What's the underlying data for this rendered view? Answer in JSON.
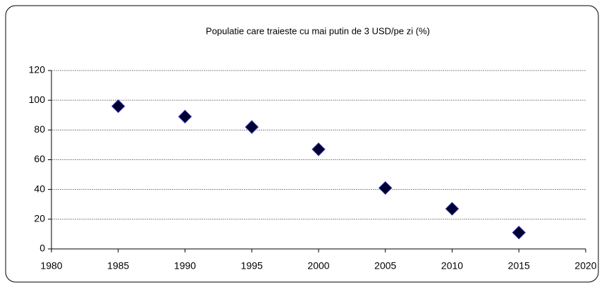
{
  "chart_data": {
    "type": "scatter",
    "title": "Populatie care traieste cu mai putin de 3 USD/pe zi (%)",
    "x": [
      1985,
      1990,
      1995,
      2000,
      2005,
      2010,
      2015
    ],
    "values": [
      96,
      89,
      82,
      67,
      41,
      27,
      11
    ],
    "color": "#000033",
    "xlim": [
      1980,
      2020
    ],
    "xticks": [
      1980,
      1985,
      1990,
      1995,
      2000,
      2005,
      2010,
      2015,
      2020
    ],
    "ylim": [
      0,
      120
    ],
    "yticks": [
      0,
      20,
      40,
      60,
      80,
      100,
      120
    ],
    "grid": true
  }
}
